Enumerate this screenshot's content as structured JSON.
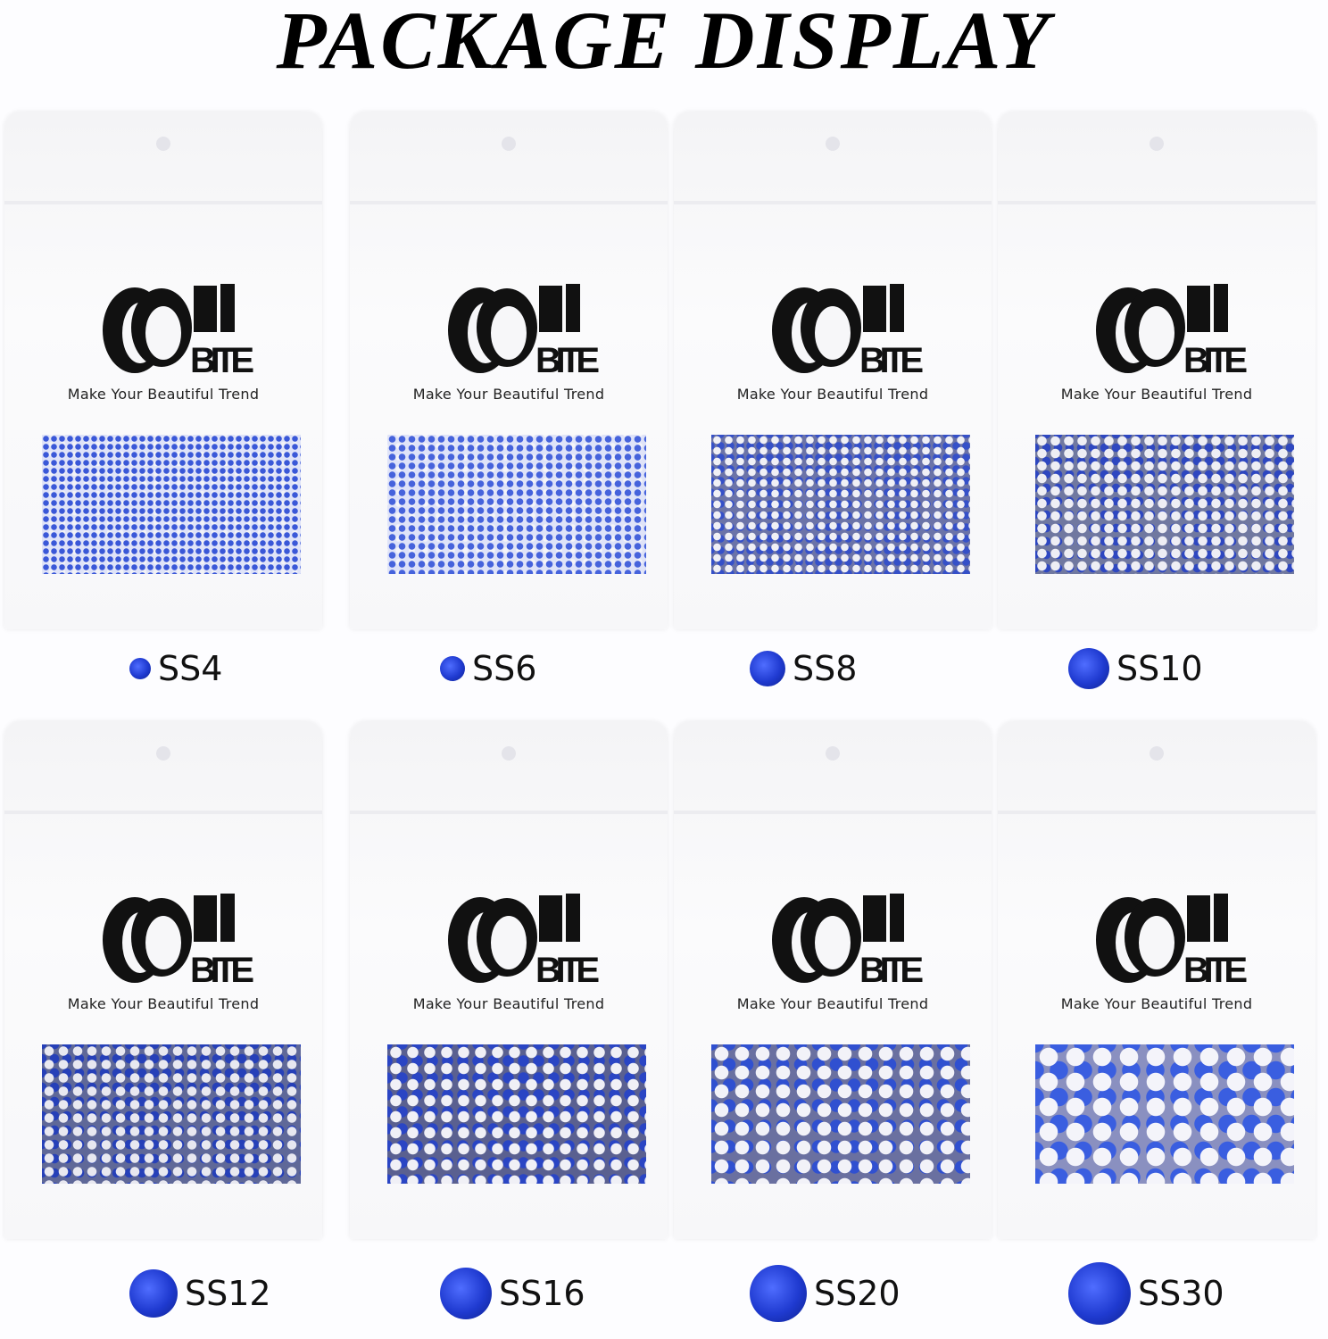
{
  "title": "PACKAGE DISPLAY",
  "brand": {
    "logo_text": "OEI BITE",
    "tagline": "Make Your Beautiful Trend"
  },
  "accent_color": "#2a45d0",
  "packages": [
    {
      "size": "SS4"
    },
    {
      "size": "SS6"
    },
    {
      "size": "SS8"
    },
    {
      "size": "SS10"
    },
    {
      "size": "SS12"
    },
    {
      "size": "SS16"
    },
    {
      "size": "SS20"
    },
    {
      "size": "SS30"
    }
  ]
}
